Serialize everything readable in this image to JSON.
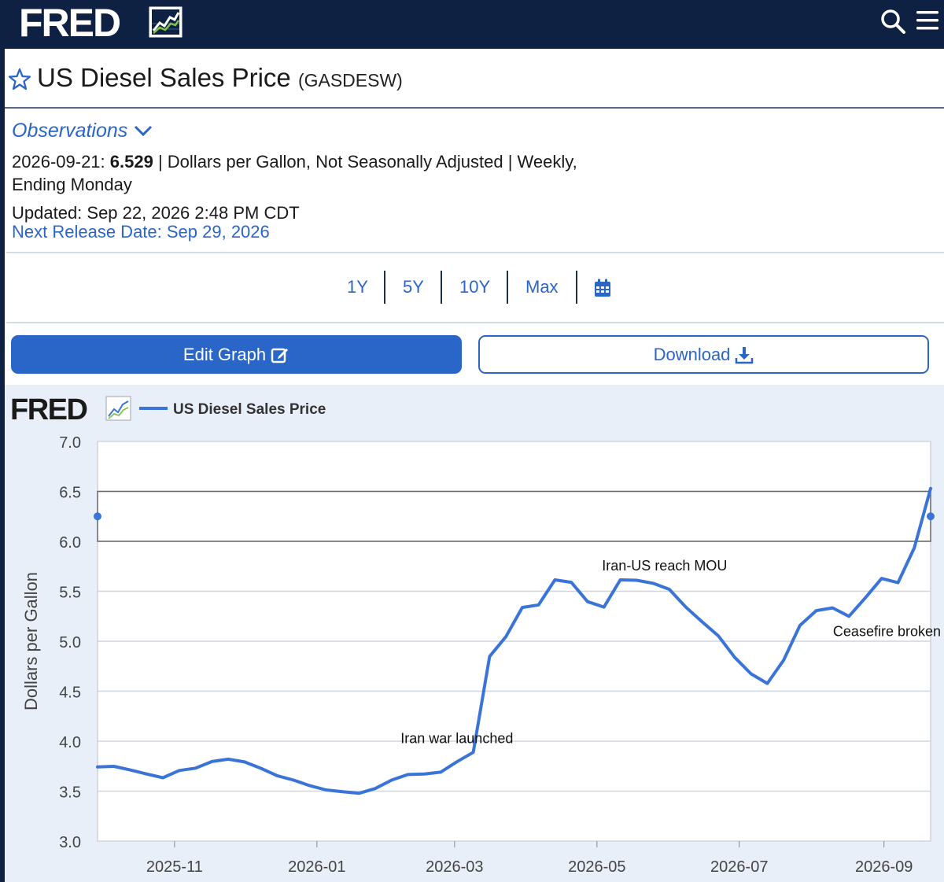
{
  "header": {
    "logo": "FRED",
    "logo_icon": "trend-chart-icon",
    "search_icon": "search-icon",
    "menu_icon": "hamburger-menu-icon"
  },
  "series": {
    "title": "US Diesel Sales Price",
    "code": "(GASDESW)"
  },
  "observations": {
    "label": "Observations",
    "date": "2026-09-21:",
    "value": "6.529",
    "details": "| Dollars per Gallon, Not Seasonally Adjusted | Weekly,",
    "details2": "Ending Monday",
    "updated": "Updated: Sep 22, 2026 2:48 PM CDT",
    "next_release": "Next Release Date: Sep 29, 2026"
  },
  "ranges": [
    "1Y",
    "5Y",
    "10Y",
    "Max"
  ],
  "buttons": {
    "edit": "Edit Graph",
    "download": "Download"
  },
  "chart_logo": "FRED",
  "colors": {
    "navy": "#0f2142",
    "accent": "#2a66c8",
    "series": "#3a74d8",
    "chart_bg": "#e9eff8"
  },
  "chart_data": {
    "type": "line",
    "title": "",
    "legend": "US Diesel Sales Price",
    "ylabel": "Dollars per Gallon",
    "ylim": [
      3.0,
      7.0
    ],
    "yticks": [
      "3.0",
      "3.5",
      "4.0",
      "4.5",
      "5.0",
      "5.5",
      "6.0",
      "6.5",
      "7.0"
    ],
    "xticks": [
      "2025-11",
      "2026-01",
      "2026-03",
      "2026-05",
      "2026-07",
      "2026-09"
    ],
    "series": [
      {
        "name": "US Diesel Sales Price",
        "x": [
          "2025-09-29",
          "2025-10-06",
          "2025-10-13",
          "2025-10-20",
          "2025-10-27",
          "2025-11-03",
          "2025-11-10",
          "2025-11-17",
          "2025-11-24",
          "2025-12-01",
          "2025-12-08",
          "2025-12-15",
          "2025-12-22",
          "2025-12-29",
          "2026-01-05",
          "2026-01-12",
          "2026-01-19",
          "2026-01-26",
          "2026-02-02",
          "2026-02-09",
          "2026-02-16",
          "2026-02-23",
          "2026-03-02",
          "2026-03-09",
          "2026-03-16",
          "2026-03-23",
          "2026-03-30",
          "2026-04-06",
          "2026-04-13",
          "2026-04-20",
          "2026-04-27",
          "2026-05-04",
          "2026-05-11",
          "2026-05-18",
          "2026-05-25",
          "2026-06-01",
          "2026-06-08",
          "2026-06-15",
          "2026-06-22",
          "2026-06-29",
          "2026-07-06",
          "2026-07-13",
          "2026-07-20",
          "2026-07-27",
          "2026-08-03",
          "2026-08-10",
          "2026-08-17",
          "2026-08-24",
          "2026-08-31",
          "2026-09-07",
          "2026-09-14",
          "2026-09-21"
        ],
        "values": [
          3.742,
          3.748,
          3.712,
          3.672,
          3.634,
          3.706,
          3.73,
          3.796,
          3.82,
          3.792,
          3.728,
          3.654,
          3.61,
          3.554,
          3.512,
          3.494,
          3.478,
          3.526,
          3.61,
          3.666,
          3.672,
          3.69,
          3.794,
          3.888,
          4.848,
          5.046,
          5.338,
          5.364,
          5.614,
          5.59,
          5.396,
          5.342,
          5.614,
          5.61,
          5.58,
          5.52,
          5.344,
          5.196,
          5.054,
          4.84,
          4.674,
          4.578,
          4.81,
          5.158,
          5.306,
          5.334,
          5.25,
          5.434,
          5.628,
          5.586,
          5.934,
          6.529
        ]
      }
    ],
    "annotations": [
      {
        "text": "Iran war launched",
        "x": "2026-03-02",
        "y": 3.98
      },
      {
        "text": "Iran-US reach MOU",
        "x": "2026-05-30",
        "y": 5.71
      },
      {
        "text": "Ceasefire broken",
        "x": "2026-09-07",
        "y": 5.05
      }
    ],
    "band": [
      6.0,
      6.5
    ],
    "grid": true
  }
}
